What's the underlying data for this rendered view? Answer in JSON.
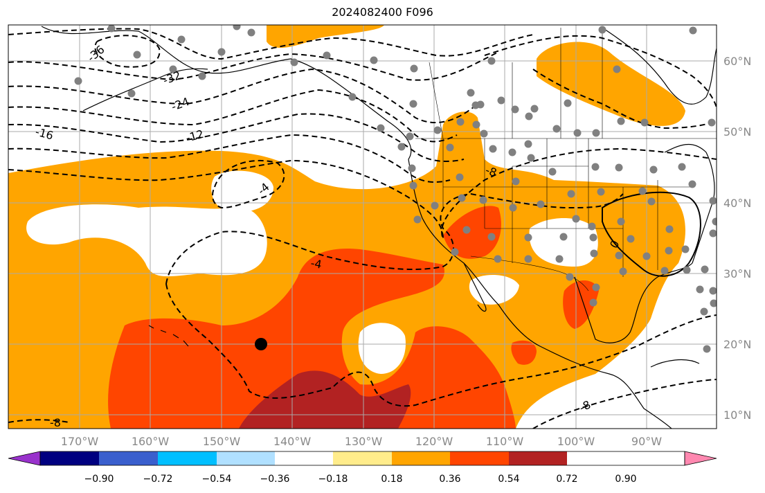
{
  "title": "2024082400 F096",
  "map": {
    "lon_ticks": [
      "170°W",
      "160°W",
      "150°W",
      "140°W",
      "130°W",
      "120°W",
      "110°W",
      "100°W",
      "90°W"
    ],
    "lat_ticks": [
      "60°N",
      "50°N",
      "40°N",
      "30°N",
      "20°N",
      "10°N"
    ],
    "contour_labels": [
      "-36",
      "-32",
      "-24",
      "-16",
      "-12",
      "-8",
      "-4",
      "-4",
      "-8",
      "0",
      "-8"
    ],
    "fill_colors": {
      "light_orange": "#ffa500",
      "red_orange": "#ff4500",
      "dark_red": "#b22222"
    },
    "station_color": "#808080"
  },
  "colorbar": {
    "ticks": [
      "−0.90",
      "−0.72",
      "−0.54",
      "−0.36",
      "−0.18",
      "0.18",
      "0.36",
      "0.54",
      "0.72",
      "0.90"
    ],
    "colors": [
      "#9932cc",
      "#000080",
      "#3a5fcd",
      "#00bfff",
      "#b0e0ff",
      "#ffffff",
      "#ffec8b",
      "#ffa500",
      "#ff4500",
      "#b22222",
      "#ff88b0"
    ]
  }
}
